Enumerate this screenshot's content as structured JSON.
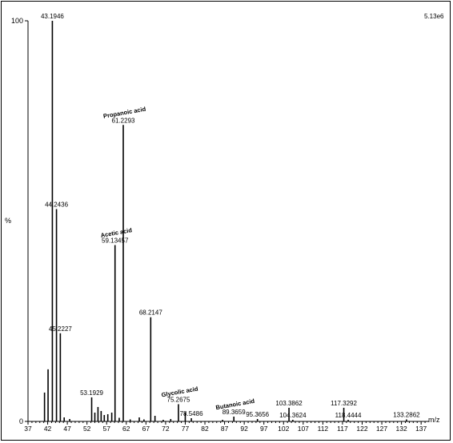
{
  "chart_data": {
    "type": "bar",
    "intensity_label": "5.13e6",
    "ylabel": "%",
    "xlabel": "m/z",
    "ylim": [
      0,
      100
    ],
    "xlim": [
      37,
      139
    ],
    "yticks": [
      "0",
      "100"
    ],
    "xticks": [
      "37",
      "42",
      "47",
      "52",
      "57",
      "62",
      "67",
      "72",
      "77",
      "82",
      "87",
      "92",
      "97",
      "102",
      "107",
      "112",
      "117",
      "122",
      "127",
      "132",
      "137"
    ],
    "peaks": [
      {
        "x": 41.2,
        "y": 7.2
      },
      {
        "x": 42.1,
        "y": 13.0
      },
      {
        "x": 43.1946,
        "y": 100,
        "label": "43.1946"
      },
      {
        "x": 44.2436,
        "y": 53.0,
        "label": "44.2436"
      },
      {
        "x": 45.2227,
        "y": 22.0,
        "label": "45.2227"
      },
      {
        "x": 46.2,
        "y": 1.0
      },
      {
        "x": 47.6,
        "y": 0.6
      },
      {
        "x": 53.1929,
        "y": 6.0,
        "label": "53.1929"
      },
      {
        "x": 54.0,
        "y": 2.2
      },
      {
        "x": 54.8,
        "y": 3.6
      },
      {
        "x": 55.6,
        "y": 2.6
      },
      {
        "x": 56.4,
        "y": 1.6
      },
      {
        "x": 57.3,
        "y": 1.8
      },
      {
        "x": 58.3,
        "y": 2.2
      },
      {
        "x": 59.13457,
        "y": 44.0,
        "label": "59.13457",
        "compound": "Acetic acid"
      },
      {
        "x": 60.2,
        "y": 0.9
      },
      {
        "x": 61.2293,
        "y": 74.0,
        "label": "61.2293",
        "compound": "Propanoic acid"
      },
      {
        "x": 63.0,
        "y": 0.5
      },
      {
        "x": 65.3,
        "y": 1.0
      },
      {
        "x": 66.5,
        "y": 0.5
      },
      {
        "x": 68.2147,
        "y": 26.0,
        "label": "68.2147"
      },
      {
        "x": 69.3,
        "y": 1.4
      },
      {
        "x": 71.4,
        "y": 0.4
      },
      {
        "x": 73.3,
        "y": 0.6
      },
      {
        "x": 75.2675,
        "y": 4.3,
        "label": "75.2675",
        "compound": "Glycolic acid"
      },
      {
        "x": 77.0,
        "y": 2.3
      },
      {
        "x": 78.5486,
        "y": 0.8,
        "label": "78.5486"
      },
      {
        "x": 86.5,
        "y": 0.4
      },
      {
        "x": 89.3659,
        "y": 1.2,
        "label": "89.3659",
        "compound": "Butanoic acid"
      },
      {
        "x": 95.3656,
        "y": 0.6,
        "label": "95.3656"
      },
      {
        "x": 103.3862,
        "y": 3.4,
        "label": "103.3862"
      },
      {
        "x": 104.3624,
        "y": 0.4,
        "label": "104.3624"
      },
      {
        "x": 117.3292,
        "y": 3.4,
        "label": "117.3292"
      },
      {
        "x": 118.4444,
        "y": 0.4,
        "label": "118.4444"
      },
      {
        "x": 133.2862,
        "y": 0.5,
        "label": "133.2862"
      }
    ]
  }
}
